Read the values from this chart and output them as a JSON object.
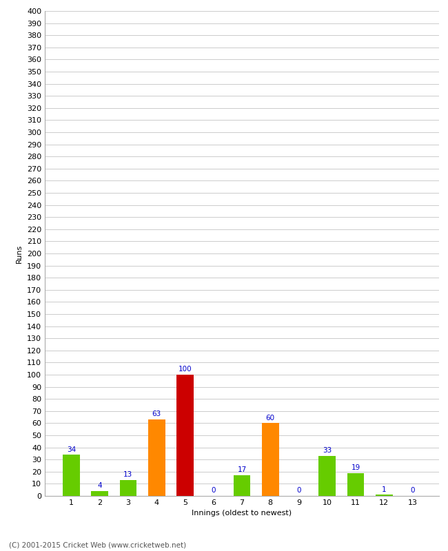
{
  "categories": [
    "1",
    "2",
    "3",
    "4",
    "5",
    "6",
    "7",
    "8",
    "9",
    "10",
    "11",
    "12",
    "13"
  ],
  "values": [
    34,
    4,
    13,
    63,
    100,
    0,
    17,
    60,
    0,
    33,
    19,
    1,
    0
  ],
  "bar_colors": [
    "#66cc00",
    "#66cc00",
    "#66cc00",
    "#ff8800",
    "#cc0000",
    "#66cc00",
    "#66cc00",
    "#ff8800",
    "#66cc00",
    "#66cc00",
    "#66cc00",
    "#66cc00",
    "#66cc00"
  ],
  "xlabel": "Innings (oldest to newest)",
  "ylabel": "Runs",
  "ylim": [
    0,
    400
  ],
  "background_color": "#ffffff",
  "grid_color": "#cccccc",
  "label_color": "#0000cc",
  "label_fontsize": 7.5,
  "axis_fontsize": 8,
  "footer": "(C) 2001-2015 Cricket Web (www.cricketweb.net)"
}
